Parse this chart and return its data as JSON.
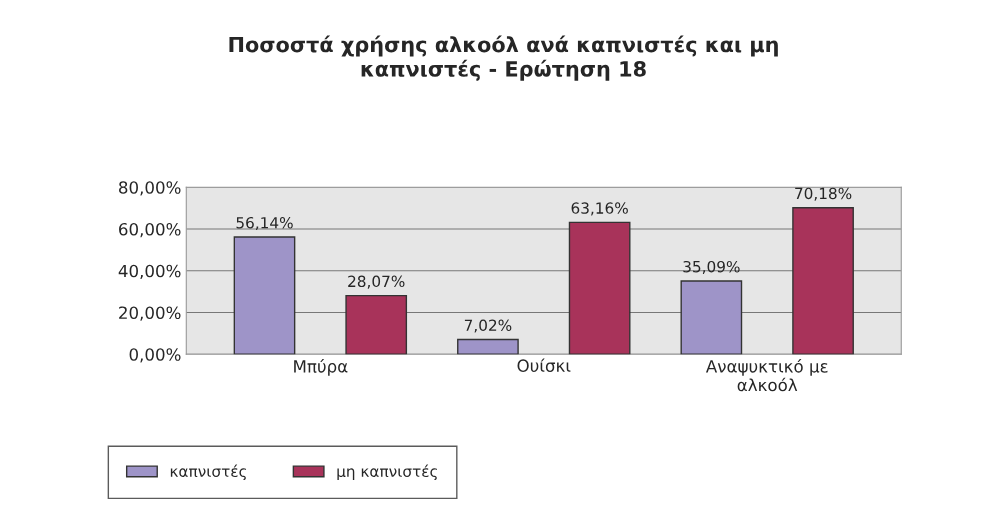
{
  "chart_data": {
    "type": "bar",
    "title": "Ποσοστά χρήσης αλκοόλ ανά καπνιστές και μη\nκαπνιστές - Ερώτηση 18",
    "categories": [
      "Μπύρα",
      "Ουίσκι",
      "Αναψυκτικό με\nαλκοόλ"
    ],
    "series": [
      {
        "name": "καπνιστές",
        "color": "#9e94c8",
        "values": [
          56.14,
          7.02,
          35.09
        ],
        "value_labels": [
          "56,14%",
          "7,02%",
          "35,09%"
        ]
      },
      {
        "name": "μη καπνιστές",
        "color": "#a8335a",
        "values": [
          28.07,
          63.16,
          70.18
        ],
        "value_labels": [
          "28,07%",
          "63,16%",
          "70,18%"
        ]
      }
    ],
    "ylim": [
      0,
      80
    ],
    "yticks": [
      {
        "value": 0,
        "label": "0,00%"
      },
      {
        "value": 20,
        "label": "20,00%"
      },
      {
        "value": 40,
        "label": "40,00%"
      },
      {
        "value": 60,
        "label": "60,00%"
      },
      {
        "value": 80,
        "label": "80,00%"
      }
    ],
    "grid": "y",
    "legend": "bottom"
  }
}
